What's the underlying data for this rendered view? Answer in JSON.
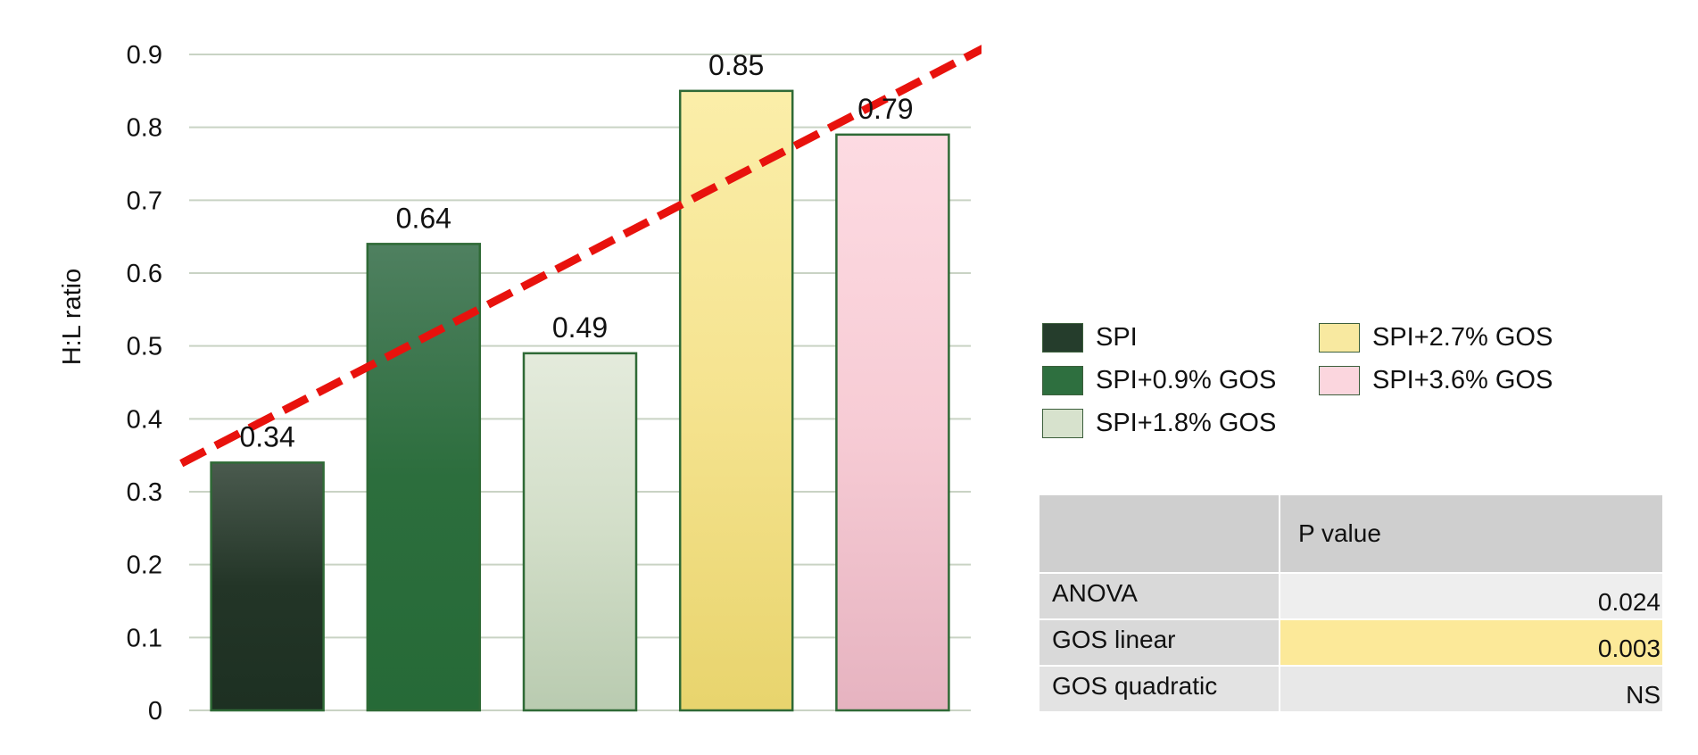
{
  "chart_data": {
    "type": "bar",
    "categories": [
      "SPI",
      "SPI+0.9% GOS",
      "SPI+1.8% GOS",
      "SPI+2.7% GOS",
      "SPI+3.6% GOS"
    ],
    "values": [
      0.34,
      0.64,
      0.49,
      0.85,
      0.79
    ],
    "value_labels": [
      "0.34",
      "0.64",
      "0.49",
      "0.85",
      "0.79"
    ],
    "colors": [
      "#2c3f30",
      "#2e6f3f",
      "#c9d8bf",
      "#f3df86",
      "#f3c6cf"
    ],
    "ylabel": "H:L ratio",
    "ylim": [
      0,
      0.9
    ],
    "yticks": [
      "0",
      "0.1",
      "0.2",
      "0.3",
      "0.4",
      "0.5",
      "0.6",
      "0.7",
      "0.8",
      "0.9"
    ],
    "grid": true,
    "legend_position": "right",
    "trendline": {
      "style": "dashed",
      "color": "#e8120d"
    }
  },
  "table": {
    "header": {
      "label": "",
      "value": "P value"
    },
    "rows": [
      {
        "label": "ANOVA",
        "value": "0.024"
      },
      {
        "label": "GOS linear",
        "value": "0.003"
      },
      {
        "label": "GOS quadratic",
        "value": "NS"
      }
    ],
    "highlight_color": "#fce999"
  }
}
